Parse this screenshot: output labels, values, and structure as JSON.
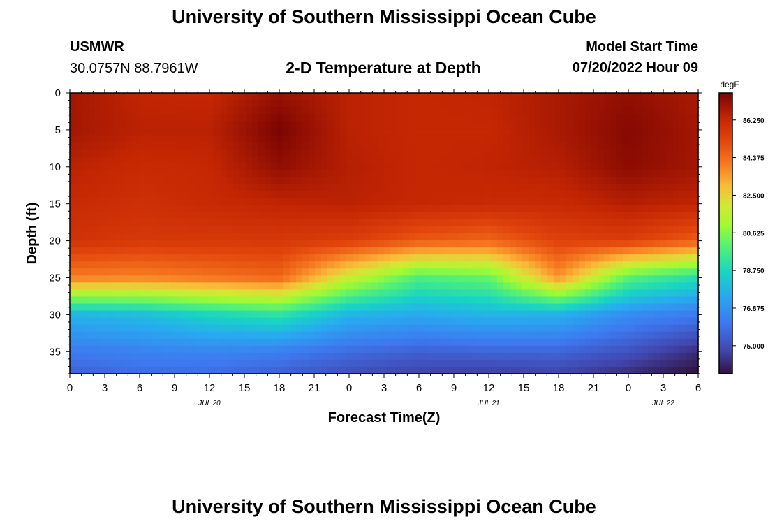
{
  "header": {
    "title": "University of Southern Mississippi Ocean Cube",
    "station": "USMWR",
    "coords": "30.0757N  88.7961W",
    "plot_title": "2-D Temperature at Depth",
    "model_label": "Model Start Time",
    "model_time": "07/20/2022 Hour 09"
  },
  "footer": {
    "title": "University of Southern Mississippi Ocean Cube"
  },
  "chart_data": {
    "type": "heatmap",
    "title": "2-D Temperature at Depth",
    "xlabel": "Forecast Time(Z)",
    "ylabel": "Depth (ft)",
    "x_ticks": [
      "0",
      "3",
      "6",
      "9",
      "12",
      "15",
      "18",
      "21",
      "0",
      "3",
      "6",
      "9",
      "12",
      "15",
      "18",
      "21",
      "0",
      "3",
      "6"
    ],
    "x_range_hours": [
      0,
      54
    ],
    "date_labels": [
      {
        "label": "JUL 20",
        "hour": 12
      },
      {
        "label": "JUL 21",
        "hour": 36
      },
      {
        "label": "JUL 22",
        "hour": 51
      }
    ],
    "y_ticks": [
      "0",
      "5",
      "10",
      "15",
      "20",
      "25",
      "30",
      "35"
    ],
    "ylim": [
      0,
      38
    ],
    "colorbar": {
      "units": "degF",
      "min": 73.6,
      "max": 87.6,
      "ticks": [
        "86.250",
        "84.375",
        "82.500",
        "80.625",
        "78.750",
        "76.875",
        "75.000"
      ]
    },
    "x_hours": [
      0,
      6,
      12,
      18,
      24,
      30,
      36,
      42,
      48,
      54
    ],
    "depths_ft": [
      0,
      5,
      10,
      15,
      20,
      25,
      30,
      35,
      38
    ],
    "temperature_degF": [
      [
        86.9,
        86.4,
        86.3,
        87.1,
        86.5,
        86.3,
        86.4,
        86.8,
        87.2,
        86.8
      ],
      [
        86.9,
        86.5,
        86.5,
        87.6,
        86.5,
        86.3,
        86.3,
        86.8,
        87.4,
        86.9
      ],
      [
        86.5,
        86.2,
        86.3,
        87.2,
        86.6,
        86.3,
        86.4,
        86.6,
        87.3,
        86.9
      ],
      [
        86.2,
        86.0,
        86.2,
        86.4,
        86.5,
        86.3,
        86.2,
        86.2,
        86.6,
        86.4
      ],
      [
        85.9,
        85.7,
        85.7,
        85.7,
        85.5,
        84.8,
        84.5,
        85.4,
        85.5,
        84.7
      ],
      [
        84.0,
        83.9,
        84.2,
        84.5,
        81.8,
        79.8,
        80.2,
        83.6,
        80.0,
        79.0
      ],
      [
        77.8,
        78.0,
        78.7,
        79.2,
        77.8,
        77.5,
        77.8,
        77.7,
        76.7,
        76.2
      ],
      [
        76.2,
        76.4,
        76.5,
        76.3,
        75.8,
        75.5,
        75.6,
        75.6,
        75.1,
        74.2
      ],
      [
        75.5,
        75.8,
        75.8,
        75.5,
        75.0,
        74.7,
        74.6,
        74.7,
        74.2,
        73.6
      ]
    ]
  }
}
